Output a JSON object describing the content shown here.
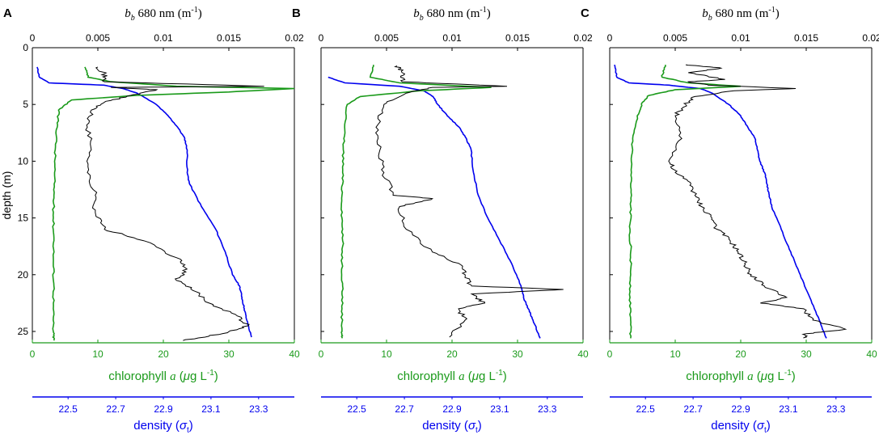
{
  "colors": {
    "chl": "#1a9a1a",
    "density": "#0000ee",
    "bb": "#000000",
    "axis": "#000000"
  },
  "chart_data": [
    {
      "type": "line",
      "panel_label": "A",
      "top_axis": {
        "var": "b",
        "sub": "b",
        "rest": " 680 nm (m",
        "sup": "-1",
        "close": ")",
        "range": [
          0,
          0.02
        ],
        "ticks": [
          "0",
          "0.005",
          "0.01",
          "0.015",
          "0.02"
        ]
      },
      "left_axis": {
        "label": "depth (m)",
        "range": [
          0,
          26
        ],
        "ticks": [
          "0",
          "5",
          "10",
          "15",
          "20",
          "25"
        ]
      },
      "bottom_axis": {
        "label_pre": "chlorophyll ",
        "label_var": "a",
        "label_open": " (",
        "label_mu": "μ",
        "label_post": "g L",
        "label_sup": "-1",
        "label_close": ")",
        "range": [
          0,
          40
        ],
        "ticks": [
          "0",
          "10",
          "20",
          "30",
          "40"
        ]
      },
      "density_axis": {
        "label_pre": "density (",
        "label_sigma": "σ",
        "label_sub": "t",
        "label_close": ")",
        "range": [
          22.35,
          23.45
        ],
        "ticks": [
          "22.5",
          "22.7",
          "22.9",
          "23.1",
          "23.3"
        ]
      },
      "series": {
        "chlorophyll": {
          "depth": [
            1.7,
            2.6,
            3.0,
            3.4,
            3.6,
            3.9,
            4.2,
            4.6,
            5.5,
            7,
            9,
            11,
            13,
            15,
            17,
            19,
            21,
            23,
            25,
            25.8
          ],
          "value": [
            8,
            8.5,
            12,
            22,
            40,
            30,
            16,
            6,
            4,
            3.8,
            3.5,
            3.4,
            3.3,
            3.2,
            3.3,
            3.2,
            3.3,
            3.2,
            3.2,
            3.3
          ]
        },
        "bb": {
          "depth": [
            1.7,
            2.3,
            3.0,
            3.4,
            3.5,
            3.7,
            4.2,
            4.8,
            5.5,
            7,
            9,
            11,
            13,
            14.5,
            16,
            17,
            18.5,
            19.5,
            20.5,
            21.5,
            22.5,
            23.5,
            24.5,
            25.2,
            25.8
          ],
          "value": [
            0.005,
            0.0055,
            0.0055,
            0.0177,
            0.006,
            0.0095,
            0.0075,
            0.0055,
            0.0045,
            0.0042,
            0.0045,
            0.0042,
            0.0048,
            0.0048,
            0.0055,
            0.0085,
            0.011,
            0.0118,
            0.011,
            0.0125,
            0.0135,
            0.0155,
            0.0165,
            0.0145,
            0.0115
          ]
        },
        "density": {
          "depth": [
            1.7,
            2.6,
            3.1,
            3.3,
            3.6,
            4,
            5,
            6,
            7,
            8,
            9,
            11,
            12,
            14,
            16,
            18,
            20,
            21,
            22,
            23,
            24,
            25.5
          ],
          "value": [
            22.37,
            22.38,
            22.42,
            22.65,
            22.73,
            22.79,
            22.87,
            22.92,
            22.96,
            22.99,
            23.0,
            23.0,
            23.01,
            23.06,
            23.12,
            23.16,
            23.19,
            23.22,
            23.23,
            23.24,
            23.25,
            23.27
          ]
        }
      }
    },
    {
      "type": "line",
      "panel_label": "B",
      "top_axis": {
        "var": "b",
        "sub": "b",
        "rest": " 680 nm (m",
        "sup": "-1",
        "close": ")",
        "range": [
          0,
          0.02
        ],
        "ticks": [
          "0",
          "0.005",
          "0.01",
          "0.015",
          "0.02"
        ]
      },
      "left_axis": {
        "label": "",
        "range": [
          0,
          26
        ],
        "ticks": []
      },
      "bottom_axis": {
        "label_pre": "chlorophyll ",
        "label_var": "a",
        "label_open": " (",
        "label_mu": "μ",
        "label_post": "g L",
        "label_sup": "-1",
        "label_close": ")",
        "range": [
          0,
          40
        ],
        "ticks": [
          "0",
          "10",
          "20",
          "30",
          "40"
        ]
      },
      "density_axis": {
        "label_pre": "density (",
        "label_sigma": "σ",
        "label_sub": "t",
        "label_close": ")",
        "range": [
          22.35,
          23.45
        ],
        "ticks": [
          "22.5",
          "22.7",
          "22.9",
          "23.1",
          "23.3"
        ]
      },
      "series": {
        "chlorophyll": {
          "depth": [
            1.5,
            2.6,
            3.1,
            3.5,
            3.8,
            4.3,
            5,
            7,
            9,
            11,
            13,
            15,
            17,
            19,
            21,
            23,
            25,
            25.6
          ],
          "value": [
            8,
            7.5,
            12,
            26,
            15,
            6,
            4,
            3.6,
            3.4,
            3.3,
            3.2,
            3.2,
            3.3,
            3.2,
            3.3,
            3.2,
            3.2,
            3.2
          ]
        },
        "bb": {
          "depth": [
            1.6,
            2.2,
            3.0,
            3.4,
            3.5,
            4,
            5,
            7,
            9,
            11,
            13,
            13.3,
            14,
            16,
            18,
            19,
            20,
            21,
            21.3,
            21.7,
            22.5,
            23,
            24,
            25.5
          ],
          "value": [
            0.0058,
            0.0062,
            0.0062,
            0.0142,
            0.0085,
            0.0065,
            0.0048,
            0.0042,
            0.0045,
            0.0048,
            0.0055,
            0.0085,
            0.006,
            0.0065,
            0.0085,
            0.0105,
            0.011,
            0.0115,
            0.0185,
            0.0115,
            0.0125,
            0.0105,
            0.011,
            0.0098
          ]
        },
        "density": {
          "depth": [
            2.6,
            3.1,
            3.4,
            3.8,
            4.3,
            5,
            6,
            7,
            8,
            9,
            11,
            13,
            15,
            17,
            19,
            21,
            22,
            23,
            24,
            25.6
          ],
          "value": [
            22.38,
            22.45,
            22.68,
            22.78,
            22.82,
            22.84,
            22.88,
            22.93,
            22.96,
            22.98,
            22.99,
            23.01,
            23.05,
            23.1,
            23.15,
            23.19,
            23.2,
            23.22,
            23.24,
            23.27
          ]
        }
      }
    },
    {
      "type": "line",
      "panel_label": "C",
      "top_axis": {
        "var": "b",
        "sub": "b",
        "rest": " 680 nm (m",
        "sup": "-1",
        "close": ")",
        "range": [
          0,
          0.02
        ],
        "ticks": [
          "0",
          "0.005",
          "0.01",
          "0.015",
          "0.02"
        ]
      },
      "left_axis": {
        "label": "",
        "range": [
          0,
          26
        ],
        "ticks": []
      },
      "bottom_axis": {
        "label_pre": "chlorophyll ",
        "label_var": "a",
        "label_open": " (",
        "label_mu": "μ",
        "label_post": "g L",
        "label_sup": "-1",
        "label_close": ")",
        "range": [
          0,
          40
        ],
        "ticks": [
          "0",
          "10",
          "20",
          "30",
          "40"
        ]
      },
      "density_axis": {
        "label_pre": "density (",
        "label_sigma": "σ",
        "label_sub": "t",
        "label_close": ")",
        "range": [
          22.35,
          23.45
        ],
        "ticks": [
          "22.5",
          "22.7",
          "22.9",
          "23.1",
          "23.3"
        ]
      },
      "series": {
        "chlorophyll": {
          "depth": [
            1.5,
            2.6,
            3.1,
            3.4,
            3.7,
            4.2,
            4.8,
            6,
            8,
            10,
            12,
            14,
            16,
            18,
            20,
            22,
            24,
            25.6
          ],
          "value": [
            8.5,
            8,
            12,
            20,
            10,
            6,
            5,
            4.2,
            3.5,
            3.3,
            3.2,
            3.2,
            3.1,
            3.2,
            3.2,
            3.1,
            3.2,
            3.2
          ]
        },
        "bb": {
          "depth": [
            1.5,
            1.8,
            2.2,
            2.8,
            3.0,
            3.3,
            3.6,
            3.8,
            4.3,
            5,
            6,
            8,
            10,
            11,
            12,
            13,
            14,
            15,
            16,
            17,
            18,
            19,
            20,
            21,
            22,
            22.5,
            23,
            24,
            24.8,
            25.2,
            25.6
          ],
          "value": [
            0.0058,
            0.0085,
            0.006,
            0.0088,
            0.006,
            0.0075,
            0.0142,
            0.0095,
            0.0065,
            0.0058,
            0.005,
            0.0055,
            0.0045,
            0.005,
            0.0062,
            0.0065,
            0.007,
            0.0078,
            0.0082,
            0.0092,
            0.0098,
            0.0103,
            0.0108,
            0.0118,
            0.0135,
            0.0115,
            0.0148,
            0.0155,
            0.018,
            0.015,
            0.0148
          ]
        },
        "density": {
          "depth": [
            1.5,
            2.6,
            3.1,
            3.3,
            3.6,
            4,
            5,
            6,
            7,
            8,
            9,
            10,
            11,
            12,
            13,
            14,
            16,
            18,
            20,
            22,
            24,
            25.6
          ],
          "value": [
            22.37,
            22.38,
            22.43,
            22.6,
            22.73,
            22.78,
            22.85,
            22.9,
            22.93,
            22.96,
            22.97,
            22.98,
            23.0,
            23.01,
            23.02,
            23.03,
            23.07,
            23.11,
            23.15,
            23.19,
            23.23,
            23.26
          ]
        }
      }
    }
  ]
}
